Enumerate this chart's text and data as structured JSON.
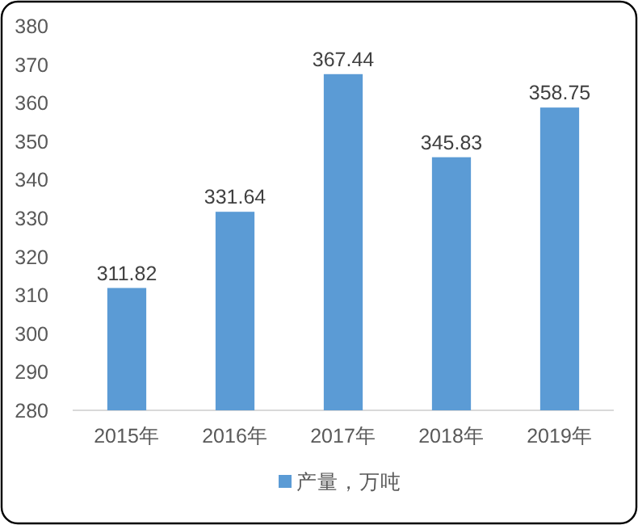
{
  "chart_data": {
    "type": "bar",
    "categories": [
      "2015年",
      "2016年",
      "2017年",
      "2018年",
      "2019年"
    ],
    "series": [
      {
        "name": "产量，万吨",
        "color": "#5b9bd5",
        "values": [
          311.82,
          331.64,
          367.44,
          345.83,
          358.75
        ]
      }
    ],
    "ylim": [
      280,
      380
    ],
    "yticks": [
      280,
      290,
      300,
      310,
      320,
      330,
      340,
      350,
      360,
      370,
      380
    ],
    "data_labels": true,
    "legend": "bottom",
    "grid": false
  }
}
